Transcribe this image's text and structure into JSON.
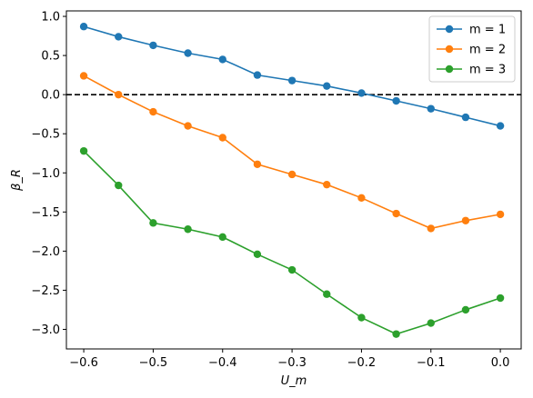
{
  "chart_data": {
    "type": "line",
    "title": "",
    "xlabel": "U_m",
    "ylabel": "β_R",
    "xlim": [
      -0.625,
      0.03
    ],
    "ylim": [
      -3.25,
      1.07
    ],
    "x": [
      -0.6,
      -0.55,
      -0.5,
      -0.45,
      -0.4,
      -0.35,
      -0.3,
      -0.25,
      -0.2,
      -0.15,
      -0.1,
      -0.05,
      0.0
    ],
    "xticks": [
      -0.6,
      -0.5,
      -0.4,
      -0.3,
      -0.2,
      -0.1,
      0.0
    ],
    "xtick_labels": [
      "−0.6",
      "−0.5",
      "−0.4",
      "−0.3",
      "−0.2",
      "−0.1",
      "0.0"
    ],
    "yticks": [
      1.0,
      0.5,
      0.0,
      -0.5,
      -1.0,
      -1.5,
      -2.0,
      -2.5,
      -3.0
    ],
    "ytick_labels": [
      "1.0",
      "0.5",
      "0.0",
      "−0.5",
      "−1.0",
      "−1.5",
      "−2.0",
      "−2.5",
      "−3.0"
    ],
    "reference_line": {
      "y": 0.0,
      "style": "dashed",
      "color": "#000000"
    },
    "series": [
      {
        "name": "m = 1",
        "color": "#1f77b4",
        "values": [
          0.87,
          0.74,
          0.63,
          0.53,
          0.45,
          0.25,
          0.18,
          0.11,
          0.02,
          -0.08,
          -0.18,
          -0.29,
          -0.4
        ]
      },
      {
        "name": "m = 2",
        "color": "#ff7f0e",
        "values": [
          0.24,
          0.0,
          -0.22,
          -0.4,
          -0.55,
          -0.89,
          -1.02,
          -1.15,
          -1.32,
          -1.52,
          -1.71,
          -1.61,
          -1.53
        ]
      },
      {
        "name": "m = 3",
        "color": "#2ca02c",
        "values": [
          -0.72,
          -1.16,
          -1.64,
          -1.72,
          -1.82,
          -2.04,
          -2.24,
          -2.55,
          -2.85,
          -3.06,
          -2.92,
          -2.75,
          -2.6
        ]
      }
    ],
    "grid": false,
    "legend_position": "top-right"
  }
}
